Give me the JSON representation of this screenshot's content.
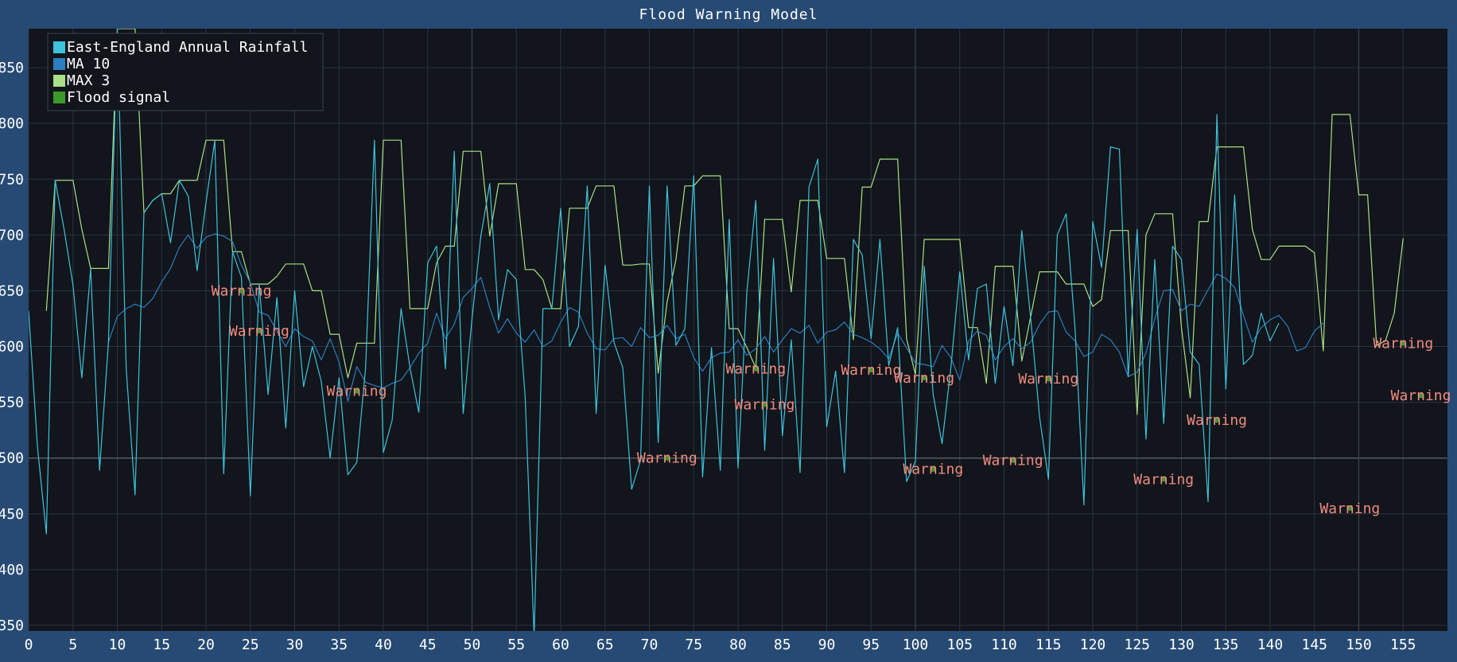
{
  "window": {
    "title": "Flood Warning Model"
  },
  "colors": {
    "background": "#264a73",
    "plot_bg": "#12151b",
    "grid": "#2a3440",
    "threshold_line": "#5d6670",
    "rainfall": "#3ec3dd",
    "ma": "#2a7fc0",
    "max": "#a9e088",
    "signal": "#3c9a2c",
    "warning_text": "#f08c80"
  },
  "chart_data": {
    "type": "line",
    "title": "Flood Warning Model",
    "xlim": [
      0,
      160
    ],
    "ylim": [
      345,
      885
    ],
    "x_ticks": [
      0,
      5,
      10,
      15,
      20,
      25,
      30,
      35,
      40,
      45,
      50,
      55,
      60,
      65,
      70,
      75,
      80,
      85,
      90,
      95,
      100,
      105,
      110,
      115,
      120,
      125,
      130,
      135,
      140,
      145,
      150,
      155
    ],
    "y_ticks": [
      350,
      400,
      450,
      500,
      550,
      600,
      650,
      700,
      750,
      800,
      850
    ],
    "threshold": 500,
    "grid": true,
    "legend_position": "top-left",
    "series": [
      {
        "name": "East-England Annual Rainfall",
        "color": "#3ec3dd",
        "start_x": 0,
        "values": [
          632,
          510,
          432,
          749,
          705,
          655,
          572,
          670,
          489,
          604,
          885,
          580,
          467,
          720,
          731,
          737,
          693,
          749,
          735,
          668,
          729,
          785,
          486,
          685,
          662,
          466,
          656,
          557,
          644,
          527,
          650,
          564,
          600,
          569,
          500,
          572,
          485,
          496,
          581,
          785,
          505,
          534,
          634,
          581,
          541,
          675,
          690,
          580,
          775,
          540,
          625,
          699,
          746,
          624,
          669,
          660,
          554,
          340,
          634,
          634,
          724,
          600,
          618,
          744,
          540,
          673,
          604,
          581,
          472,
          498,
          744,
          514,
          744,
          601,
          616,
          753,
          483,
          599,
          489,
          714,
          491,
          649,
          731,
          507,
          679,
          520,
          606,
          487,
          743,
          768,
          528,
          578,
          487,
          696,
          682,
          607,
          696,
          583,
          617,
          479,
          497,
          672,
          557,
          513,
          581,
          667,
          588,
          652,
          656,
          567,
          636,
          583,
          704,
          625,
          537,
          481,
          700,
          719,
          617,
          458,
          712,
          671,
          779,
          777,
          573,
          705,
          517,
          678,
          531,
          690,
          678,
          595,
          584,
          461,
          808,
          562,
          736,
          584,
          592,
          630,
          605,
          621
        ]
      },
      {
        "name": "MA 10",
        "color": "#2a7fc0",
        "start_x": 9,
        "values": [
          604,
          627,
          634,
          638,
          635,
          643,
          658,
          670,
          689,
          700,
          688,
          698,
          701,
          699,
          694,
          673,
          657,
          631,
          628,
          614,
          600,
          616,
          609,
          605,
          588,
          607,
          586,
          551,
          582,
          568,
          565,
          563,
          567,
          570,
          581,
          594,
          603,
          630,
          607,
          620,
          644,
          652,
          662,
          635,
          612,
          625,
          612,
          604,
          615,
          600,
          605,
          622,
          635,
          631,
          612,
          598,
          597,
          607,
          608,
          600,
          617,
          608,
          610,
          619,
          607,
          611,
          590,
          578,
          590,
          594,
          595,
          606,
          592,
          598,
          609,
          595,
          606,
          616,
          612,
          619,
          603,
          613,
          615,
          622,
          611,
          608,
          604,
          598,
          589,
          612,
          599,
          585,
          584,
          582,
          601,
          590,
          570,
          605,
          614,
          610,
          588,
          600,
          607,
          598,
          604,
          620,
          631,
          632,
          613,
          605,
          591,
          595,
          611,
          606,
          595,
          573,
          577,
          594,
          625,
          650,
          651,
          632,
          638,
          636,
          651,
          665,
          661,
          653,
          628,
          604,
          617,
          624,
          628,
          618,
          596,
          599,
          614,
          621
        ]
      },
      {
        "name": "MAX 3",
        "color": "#a9e088",
        "start_x": 2,
        "values": [
          632,
          749,
          749,
          749,
          705,
          670,
          670,
          670,
          885,
          885,
          885,
          720,
          731,
          737,
          737,
          749,
          749,
          749,
          785,
          785,
          785,
          685,
          685,
          656,
          656,
          656,
          663,
          674,
          674,
          674,
          650,
          650,
          611,
          611,
          572,
          603,
          603,
          603,
          785,
          785,
          785,
          634,
          634,
          634,
          675,
          690,
          690,
          775,
          775,
          775,
          699,
          746,
          746,
          746,
          669,
          669,
          660,
          634,
          634,
          724,
          724,
          724,
          744,
          744,
          744,
          673,
          673,
          674,
          674,
          576,
          640,
          678,
          744,
          744,
          753,
          753,
          753,
          616,
          616,
          599,
          581,
          714,
          714,
          714,
          649,
          731,
          731,
          731,
          679,
          679,
          679,
          606,
          743,
          743,
          768,
          768,
          768,
          607,
          575,
          696,
          696,
          696,
          696,
          696,
          617,
          617,
          567,
          672,
          672,
          672,
          587,
          627,
          667,
          667,
          667,
          656,
          656,
          656,
          636,
          642,
          704,
          704,
          704,
          539,
          700,
          719,
          719,
          719,
          617,
          554,
          712,
          712,
          779,
          779,
          779,
          779,
          705,
          678,
          678,
          690,
          690,
          690,
          690,
          684,
          596,
          808,
          808,
          808,
          736,
          736,
          601,
          605,
          630,
          697
        ]
      }
    ],
    "flood_signals": [
      {
        "x": 24,
        "y": 650,
        "label": "Warning"
      },
      {
        "x": 26,
        "y": 614,
        "label": "Warning"
      },
      {
        "x": 37,
        "y": 560,
        "label": "Warning"
      },
      {
        "x": 72,
        "y": 500,
        "label": "Warning"
      },
      {
        "x": 82,
        "y": 580,
        "label": "Warning"
      },
      {
        "x": 83,
        "y": 548,
        "label": "Warning"
      },
      {
        "x": 95,
        "y": 579,
        "label": "Warning"
      },
      {
        "x": 101,
        "y": 572,
        "label": "Warning"
      },
      {
        "x": 102,
        "y": 490,
        "label": "Warning"
      },
      {
        "x": 111,
        "y": 498,
        "label": "Warning"
      },
      {
        "x": 115,
        "y": 571,
        "label": "Warning"
      },
      {
        "x": 128,
        "y": 481,
        "label": "Warning"
      },
      {
        "x": 134,
        "y": 534,
        "label": "Warning"
      },
      {
        "x": 149,
        "y": 455,
        "label": "Warning"
      },
      {
        "x": 155,
        "y": 603,
        "label": "Warning"
      },
      {
        "x": 157,
        "y": 556,
        "label": "Warning"
      }
    ]
  }
}
